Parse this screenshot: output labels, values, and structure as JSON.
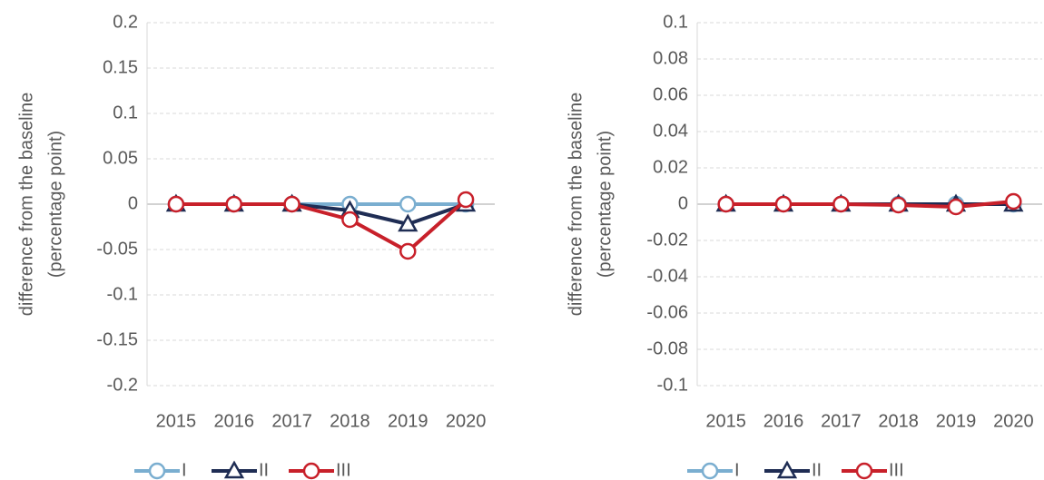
{
  "chart_data": [
    {
      "type": "line",
      "categories": [
        "2015",
        "2016",
        "2017",
        "2018",
        "2019",
        "2020"
      ],
      "y_label": [
        "difference from the baseline",
        "(percentage point)"
      ],
      "ylim": [
        -0.2,
        0.2
      ],
      "yticks": [
        -0.2,
        -0.15,
        -0.1,
        -0.05,
        0,
        0.05,
        0.1,
        0.15,
        0.2
      ],
      "grid": true,
      "legend": "bottom",
      "series": [
        {
          "name": "I",
          "color": "#7aaed0",
          "marker": "circle",
          "values": [
            0,
            0,
            0,
            0,
            0,
            0
          ]
        },
        {
          "name": "II",
          "color": "#1f2d54",
          "marker": "triangle",
          "values": [
            0,
            0,
            0,
            -0.007,
            -0.022,
            0
          ]
        },
        {
          "name": "III",
          "color": "#c8202a",
          "marker": "circle",
          "values": [
            0,
            0,
            0,
            -0.017,
            -0.052,
            0.005
          ]
        }
      ]
    },
    {
      "type": "line",
      "categories": [
        "2015",
        "2016",
        "2017",
        "2018",
        "2019",
        "2020"
      ],
      "y_label": [
        "difference from the baseline",
        "(percentage point)"
      ],
      "ylim": [
        -0.1,
        0.1
      ],
      "yticks": [
        -0.1,
        -0.08,
        -0.06,
        -0.04,
        -0.02,
        0,
        0.02,
        0.04,
        0.06,
        0.08,
        0.1
      ],
      "grid": true,
      "legend": "bottom",
      "series": [
        {
          "name": "I",
          "color": "#7aaed0",
          "marker": "circle",
          "values": [
            0,
            0,
            0,
            0,
            0,
            0
          ]
        },
        {
          "name": "II",
          "color": "#1f2d54",
          "marker": "triangle",
          "values": [
            0,
            0,
            0,
            0,
            0,
            0
          ]
        },
        {
          "name": "III",
          "color": "#c8202a",
          "marker": "circle",
          "values": [
            0,
            0,
            0,
            -0.0005,
            -0.0015,
            0.0015
          ]
        }
      ]
    }
  ]
}
